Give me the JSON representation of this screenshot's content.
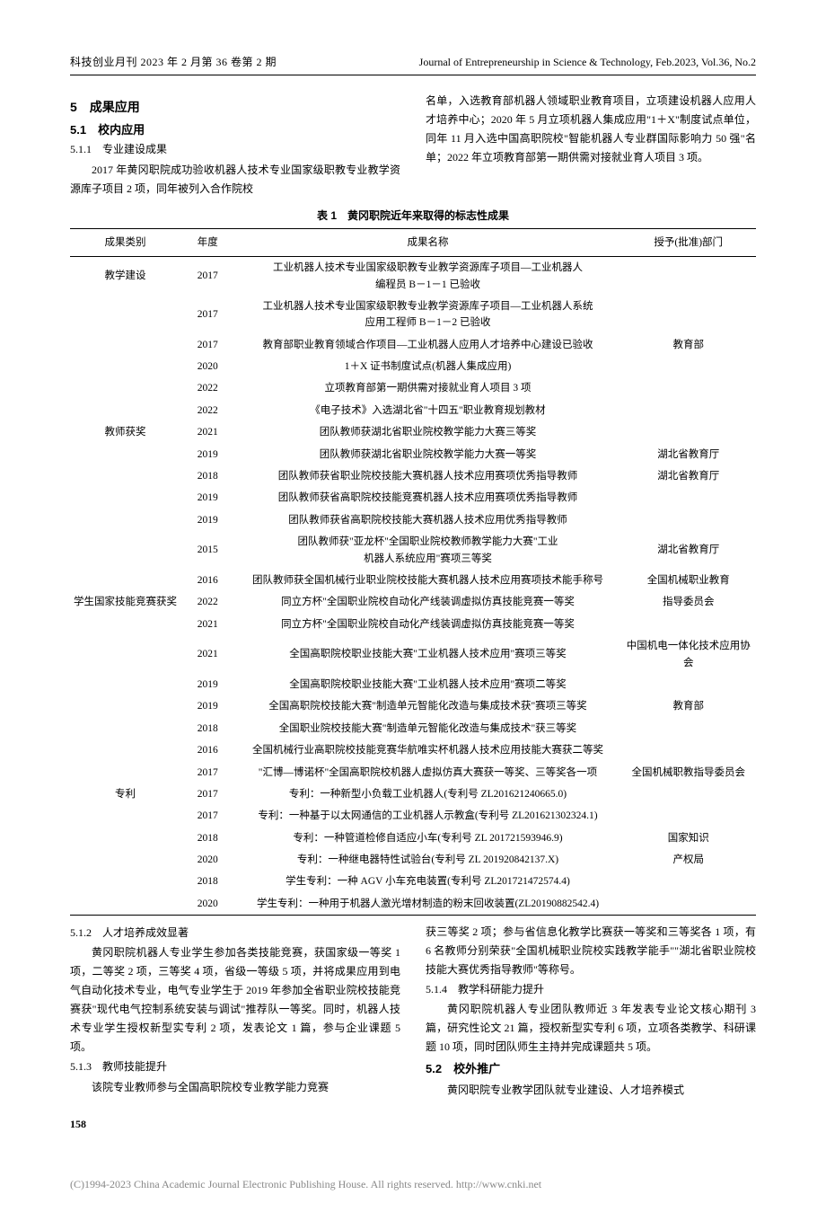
{
  "header": {
    "left": "科技创业月刊 2023 年 2 月第 36 卷第 2 期",
    "right": "Journal of Entrepreneurship in Science & Technology, Feb.2023, Vol.36, No.2"
  },
  "left_col": {
    "h5": "5　成果应用",
    "h51": "5.1　校内应用",
    "h511": "5.1.1　专业建设成果",
    "p1": "2017 年黄冈职院成功验收机器人技术专业国家级职教专业教学资源库子项目 2 项，同年被列入合作院校"
  },
  "right_col": {
    "p1": "名单，入选教育部机器人领域职业教育项目，立项建设机器人应用人才培养中心；2020 年 5 月立项机器人集成应用\"1＋X\"制度试点单位，同年 11 月入选中国高职院校\"智能机器人专业群国际影响力 50 强\"名单；2022 年立项教育部第一期供需对接就业育人项目 3 项。"
  },
  "table": {
    "title": "表 1　黄冈职院近年来取得的标志性成果",
    "headers": [
      "成果类别",
      "年度",
      "成果名称",
      "授予(批准)部门"
    ],
    "col_widths": [
      "15%",
      "8%",
      "57%",
      "20%"
    ],
    "rows": [
      {
        "cat": "教学建设",
        "year": "2017",
        "name": "工业机器人技术专业国家级职教专业教学资源库子项目—工业机器人<br>编程员 B－1－1 已验收",
        "dept": ""
      },
      {
        "cat": "",
        "year": "2017",
        "name": "工业机器人技术专业国家级职教专业教学资源库子项目—工业机器人系统<br>应用工程师 B－1－2 已验收",
        "dept": ""
      },
      {
        "cat": "",
        "year": "2017",
        "name": "教育部职业教育领域合作项目—工业机器人应用人才培养中心建设已验收",
        "dept": "教育部"
      },
      {
        "cat": "",
        "year": "2020",
        "name": "1＋X 证书制度试点(机器人集成应用)",
        "dept": ""
      },
      {
        "cat": "",
        "year": "2022",
        "name": "立项教育部第一期供需对接就业育人项目 3 项",
        "dept": ""
      },
      {
        "cat": "",
        "year": "2022",
        "name": "《电子技术》入选湖北省\"十四五\"职业教育规划教材",
        "dept": ""
      },
      {
        "cat": "教师获奖",
        "year": "2021",
        "name": "团队教师获湖北省职业院校教学能力大赛三等奖",
        "dept": ""
      },
      {
        "cat": "",
        "year": "2019",
        "name": "团队教师获湖北省职业院校教学能力大赛一等奖",
        "dept": "湖北省教育厅"
      },
      {
        "cat": "",
        "year": "2018",
        "name": "团队教师获省职业院校技能大赛机器人技术应用赛项优秀指导教师",
        "dept": "湖北省教育厅"
      },
      {
        "cat": "",
        "year": "2019",
        "name": "团队教师获省高职院校技能竞赛机器人技术应用赛项优秀指导教师",
        "dept": ""
      },
      {
        "cat": "",
        "year": "2019",
        "name": "团队教师获省高职院校技能大赛机器人技术应用优秀指导教师",
        "dept": ""
      },
      {
        "cat": "",
        "year": "2015",
        "name": "团队教师获\"亚龙杯\"全国职业院校教师教学能力大赛\"工业<br>机器人系统应用\"赛项三等奖",
        "dept": "湖北省教育厅"
      },
      {
        "cat": "",
        "year": "2016",
        "name": "团队教师获全国机械行业职业院校技能大赛机器人技术应用赛项技术能手称号",
        "dept": "全国机械职业教育"
      },
      {
        "cat": "学生国家技能竞赛获奖",
        "year": "2022",
        "name": "同立方杯\"全国职业院校自动化产线装调虚拟仿真技能竞赛一等奖",
        "dept": "指导委员会"
      },
      {
        "cat": "",
        "year": "2021",
        "name": "同立方杯\"全国职业院校自动化产线装调虚拟仿真技能竞赛一等奖",
        "dept": ""
      },
      {
        "cat": "",
        "year": "2021",
        "name": "全国高职院校职业技能大赛\"工业机器人技术应用\"赛项三等奖",
        "dept": "中国机电一体化技术应用协会"
      },
      {
        "cat": "",
        "year": "2019",
        "name": "全国高职院校职业技能大赛\"工业机器人技术应用\"赛项二等奖",
        "dept": ""
      },
      {
        "cat": "",
        "year": "2019",
        "name": "全国高职院校技能大赛\"制造单元智能化改造与集成技术获\"赛项三等奖",
        "dept": "教育部"
      },
      {
        "cat": "",
        "year": "2018",
        "name": "全国职业院校技能大赛\"制造单元智能化改造与集成技术\"获三等奖",
        "dept": ""
      },
      {
        "cat": "",
        "year": "2016",
        "name": "全国机械行业高职院校技能竞赛华航唯实杯机器人技术应用技能大赛获二等奖",
        "dept": ""
      },
      {
        "cat": "",
        "year": "2017",
        "name": "\"汇博—博诺杯\"全国高职院校机器人虚拟仿真大赛获一等奖、三等奖各一项",
        "dept": "全国机械职教指导委员会"
      },
      {
        "cat": "专利",
        "year": "2017",
        "name": "专利：一种新型小负载工业机器人(专利号 ZL201621240665.0)",
        "dept": ""
      },
      {
        "cat": "",
        "year": "2017",
        "name": "专利：一种基于以太网通信的工业机器人示教盒(专利号 ZL201621302324.1)",
        "dept": ""
      },
      {
        "cat": "",
        "year": "2018",
        "name": "专利：一种管道检修自适应小车(专利号 ZL 201721593946.9)",
        "dept": "国家知识"
      },
      {
        "cat": "",
        "year": "2020",
        "name": "专利：一种继电器特性试验台(专利号 ZL 201920842137.X)",
        "dept": "产权局"
      },
      {
        "cat": "",
        "year": "2018",
        "name": "学生专利：一种 AGV 小车充电装置(专利号 ZL201721472574.4)",
        "dept": ""
      },
      {
        "cat": "",
        "year": "2020",
        "name": "学生专利：一种用于机器人激光增材制造的粉末回收装置(ZL20190882542.4)",
        "dept": ""
      }
    ]
  },
  "bottom_left": {
    "h512": "5.1.2　人才培养成效显著",
    "p512": "黄冈职院机器人专业学生参加各类技能竞赛，获国家级一等奖 1 项，二等奖 2 项，三等奖 4 项，省级一等级 5 项，并将成果应用到电气自动化技术专业，电气专业学生于 2019 年参加全省职业院校技能竞赛获\"现代电气控制系统安装与调试\"推荐队一等奖。同时，机器人技术专业学生授权新型实专利 2 项，发表论文 1 篇，参与企业课题 5 项。",
    "h513": "5.1.3　教师技能提升",
    "p513": "该院专业教师参与全国高职院校专业教学能力竞赛"
  },
  "bottom_right": {
    "p513b": "获三等奖 2 项；参与省信息化教学比赛获一等奖和三等奖各 1 项，有 6 名教师分别荣获\"全国机械职业院校实践教学能手\"\"湖北省职业院校技能大赛优秀指导教师\"等称号。",
    "h514": "5.1.4　教学科研能力提升",
    "p514": "黄冈职院机器人专业团队教师近 3 年发表专业论文核心期刊 3 篇，研究性论文 21 篇，授权新型实专利 6 项，立项各类教学、科研课题 10 项，同时团队师生主持并完成课题共 5 项。",
    "h52": "5.2　校外推广",
    "p52": "黄冈职院专业教学团队就专业建设、人才培养模式"
  },
  "page_num": "158",
  "footer": {
    "text": "(C)1994-2023 China Academic Journal Electronic Publishing House. All rights reserved.   ",
    "link": "http://www.cnki.net"
  }
}
